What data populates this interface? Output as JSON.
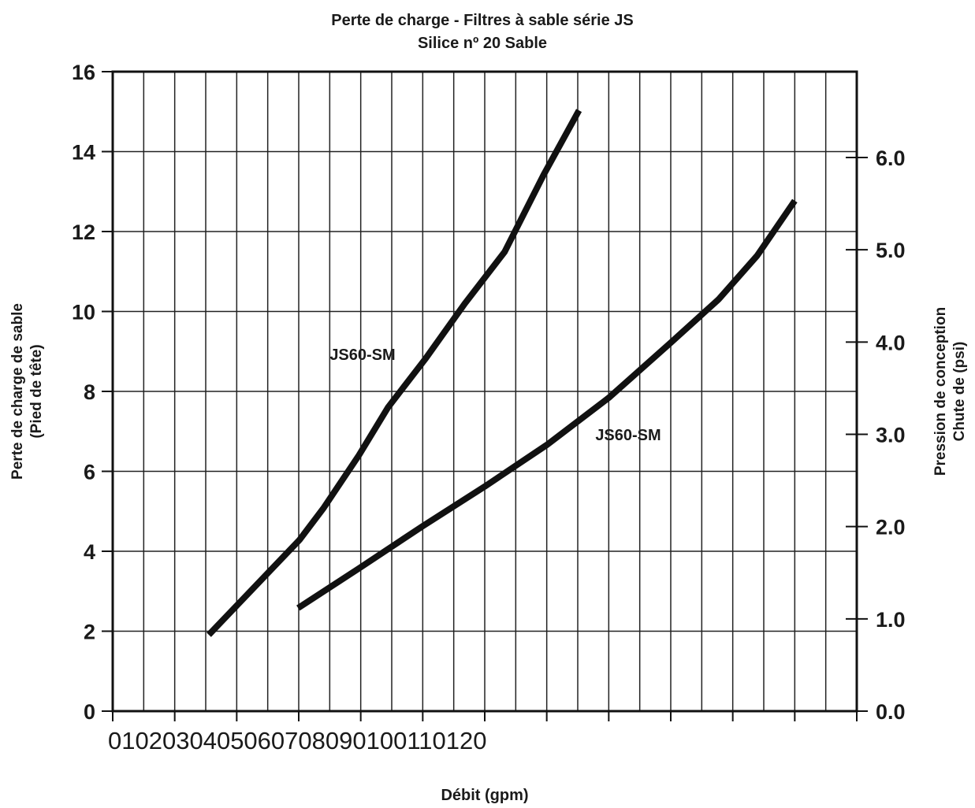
{
  "chart_data": {
    "type": "line",
    "title": "Perte de charge - Filtres à sable série JS",
    "subtitle": "Silice nº 20 Sable",
    "x_label": "Débit (gpm)",
    "y_label": [
      "Perte de charge de sable",
      "(Pied de tête)"
    ],
    "y2_label": [
      "Pression de conception",
      "Chute de (psi)"
    ],
    "xlim": [
      0,
      120
    ],
    "xticks": [
      0,
      10,
      20,
      30,
      40,
      50,
      60,
      70,
      80,
      90,
      100,
      110,
      120
    ],
    "ylim": [
      0,
      16
    ],
    "yticks": [
      0,
      2,
      4,
      6,
      8,
      10,
      12,
      14,
      16
    ],
    "y2lim": [
      0,
      6.93
    ],
    "y2ticks": [
      {
        "value": 0,
        "label": "0.0"
      },
      {
        "value": 1,
        "label": "1.0"
      },
      {
        "value": 2,
        "label": "2.0"
      },
      {
        "value": 3,
        "label": "3.0"
      },
      {
        "value": 4,
        "label": "4.0"
      },
      {
        "value": 5,
        "label": "5.0"
      },
      {
        "value": 6,
        "label": "6.0"
      }
    ],
    "grid": true,
    "series": [
      {
        "name": "JS60-SM",
        "color": "#111111",
        "x": [
          15.5,
          30.1,
          34,
          39.7,
          44.4,
          50.5,
          56.8,
          63.2,
          69.5,
          75.2
        ],
        "values": [
          1.91,
          4.28,
          5.08,
          6.4,
          7.6,
          8.83,
          10.2,
          11.49,
          13.42,
          15.03
        ]
      },
      {
        "name": "JS60-SM",
        "color": "#111111",
        "x": [
          29.9,
          39.7,
          50,
          60,
          70,
          80,
          90,
          97.7,
          103.9,
          110
        ],
        "values": [
          2.58,
          3.57,
          4.63,
          5.62,
          6.66,
          7.84,
          9.22,
          10.3,
          11.39,
          12.77
        ]
      }
    ]
  }
}
